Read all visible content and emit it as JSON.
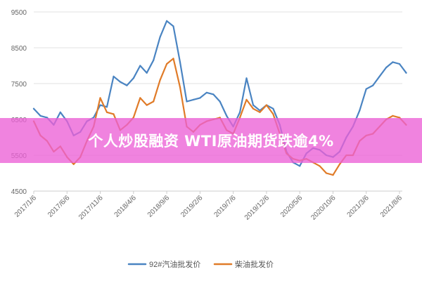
{
  "overlay": {
    "headline": "个人炒股融资 WTI原油期货跌逾4%",
    "background": "#ec60d6"
  },
  "chart_data": {
    "type": "line",
    "ylim": [
      4500,
      9500
    ],
    "yticks": [
      4500,
      5500,
      6500,
      7500,
      8500,
      9500
    ],
    "xticks": [
      "2017/1/6",
      "2017/6/6",
      "2017/11/6",
      "2018/4/6",
      "2018/9/6",
      "2019/2/6",
      "2019/7/6",
      "2019/12/6",
      "2020/5/6",
      "2020/10/6",
      "2021/3/6",
      "2021/8/6"
    ],
    "grid": true,
    "legend_position": "bottom",
    "series": [
      {
        "name": "92#汽油批发价",
        "color": "#4a84c2",
        "points": [
          [
            "2017/1/6",
            6800
          ],
          [
            "2017/2/6",
            6600
          ],
          [
            "2017/3/6",
            6550
          ],
          [
            "2017/4/6",
            6350
          ],
          [
            "2017/5/6",
            6700
          ],
          [
            "2017/6/6",
            6450
          ],
          [
            "2017/7/6",
            6050
          ],
          [
            "2017/8/6",
            6150
          ],
          [
            "2017/9/6",
            6450
          ],
          [
            "2017/10/6",
            6550
          ],
          [
            "2017/11/6",
            6900
          ],
          [
            "2017/12/6",
            6850
          ],
          [
            "2018/1/6",
            7700
          ],
          [
            "2018/2/6",
            7550
          ],
          [
            "2018/3/6",
            7450
          ],
          [
            "2018/4/6",
            7650
          ],
          [
            "2018/5/6",
            8000
          ],
          [
            "2018/6/6",
            7800
          ],
          [
            "2018/7/6",
            8150
          ],
          [
            "2018/8/6",
            8800
          ],
          [
            "2018/9/6",
            9250
          ],
          [
            "2018/10/6",
            9100
          ],
          [
            "2018/11/6",
            8100
          ],
          [
            "2018/12/6",
            7000
          ],
          [
            "2019/1/6",
            7050
          ],
          [
            "2019/2/6",
            7100
          ],
          [
            "2019/3/6",
            7250
          ],
          [
            "2019/4/6",
            7200
          ],
          [
            "2019/5/6",
            7000
          ],
          [
            "2019/6/6",
            6600
          ],
          [
            "2019/7/6",
            6300
          ],
          [
            "2019/8/6",
            6700
          ],
          [
            "2019/9/6",
            7650
          ],
          [
            "2019/10/6",
            6900
          ],
          [
            "2019/11/6",
            6750
          ],
          [
            "2019/12/6",
            6900
          ],
          [
            "2020/1/6",
            6800
          ],
          [
            "2020/2/6",
            6350
          ],
          [
            "2020/3/6",
            5600
          ],
          [
            "2020/4/6",
            5300
          ],
          [
            "2020/5/6",
            5200
          ],
          [
            "2020/6/6",
            5550
          ],
          [
            "2020/7/6",
            5700
          ],
          [
            "2020/8/6",
            5650
          ],
          [
            "2020/9/6",
            5500
          ],
          [
            "2020/10/6",
            5450
          ],
          [
            "2020/11/6",
            5600
          ],
          [
            "2020/12/6",
            6000
          ],
          [
            "2021/1/6",
            6300
          ],
          [
            "2021/2/6",
            6750
          ],
          [
            "2021/3/6",
            7350
          ],
          [
            "2021/4/6",
            7450
          ],
          [
            "2021/5/6",
            7700
          ],
          [
            "2021/6/6",
            7950
          ],
          [
            "2021/7/6",
            8100
          ],
          [
            "2021/8/6",
            8050
          ],
          [
            "2021/9/6",
            7800
          ]
        ]
      },
      {
        "name": "柴油批发价",
        "color": "#e07b28",
        "points": [
          [
            "2017/1/6",
            6450
          ],
          [
            "2017/2/6",
            6050
          ],
          [
            "2017/3/6",
            5900
          ],
          [
            "2017/4/6",
            5600
          ],
          [
            "2017/5/6",
            5750
          ],
          [
            "2017/6/6",
            5450
          ],
          [
            "2017/7/6",
            5250
          ],
          [
            "2017/8/6",
            5450
          ],
          [
            "2017/9/6",
            5900
          ],
          [
            "2017/10/6",
            6300
          ],
          [
            "2017/11/6",
            7100
          ],
          [
            "2017/12/6",
            6700
          ],
          [
            "2018/1/6",
            6650
          ],
          [
            "2018/2/6",
            6200
          ],
          [
            "2018/3/6",
            6350
          ],
          [
            "2018/4/6",
            6550
          ],
          [
            "2018/5/6",
            7100
          ],
          [
            "2018/6/6",
            6900
          ],
          [
            "2018/7/6",
            7000
          ],
          [
            "2018/8/6",
            7600
          ],
          [
            "2018/9/6",
            8050
          ],
          [
            "2018/10/6",
            8200
          ],
          [
            "2018/11/6",
            7400
          ],
          [
            "2018/12/6",
            6300
          ],
          [
            "2019/1/6",
            6150
          ],
          [
            "2019/2/6",
            6350
          ],
          [
            "2019/3/6",
            6450
          ],
          [
            "2019/4/6",
            6500
          ],
          [
            "2019/5/6",
            6550
          ],
          [
            "2019/6/6",
            6200
          ],
          [
            "2019/7/6",
            6100
          ],
          [
            "2019/8/6",
            6550
          ],
          [
            "2019/9/6",
            7050
          ],
          [
            "2019/10/6",
            6800
          ],
          [
            "2019/11/6",
            6700
          ],
          [
            "2019/12/6",
            6900
          ],
          [
            "2020/1/6",
            6650
          ],
          [
            "2020/2/6",
            6100
          ],
          [
            "2020/3/6",
            5550
          ],
          [
            "2020/4/6",
            5400
          ],
          [
            "2020/5/6",
            5350
          ],
          [
            "2020/6/6",
            5400
          ],
          [
            "2020/7/6",
            5300
          ],
          [
            "2020/8/6",
            5200
          ],
          [
            "2020/9/6",
            5000
          ],
          [
            "2020/10/6",
            4950
          ],
          [
            "2020/11/6",
            5250
          ],
          [
            "2020/12/6",
            5500
          ],
          [
            "2021/1/6",
            5500
          ],
          [
            "2021/2/6",
            5900
          ],
          [
            "2021/3/6",
            6050
          ],
          [
            "2021/4/6",
            6100
          ],
          [
            "2021/5/6",
            6300
          ],
          [
            "2021/6/6",
            6500
          ],
          [
            "2021/7/6",
            6600
          ],
          [
            "2021/8/6",
            6550
          ],
          [
            "2021/9/6",
            6350
          ]
        ]
      }
    ]
  }
}
